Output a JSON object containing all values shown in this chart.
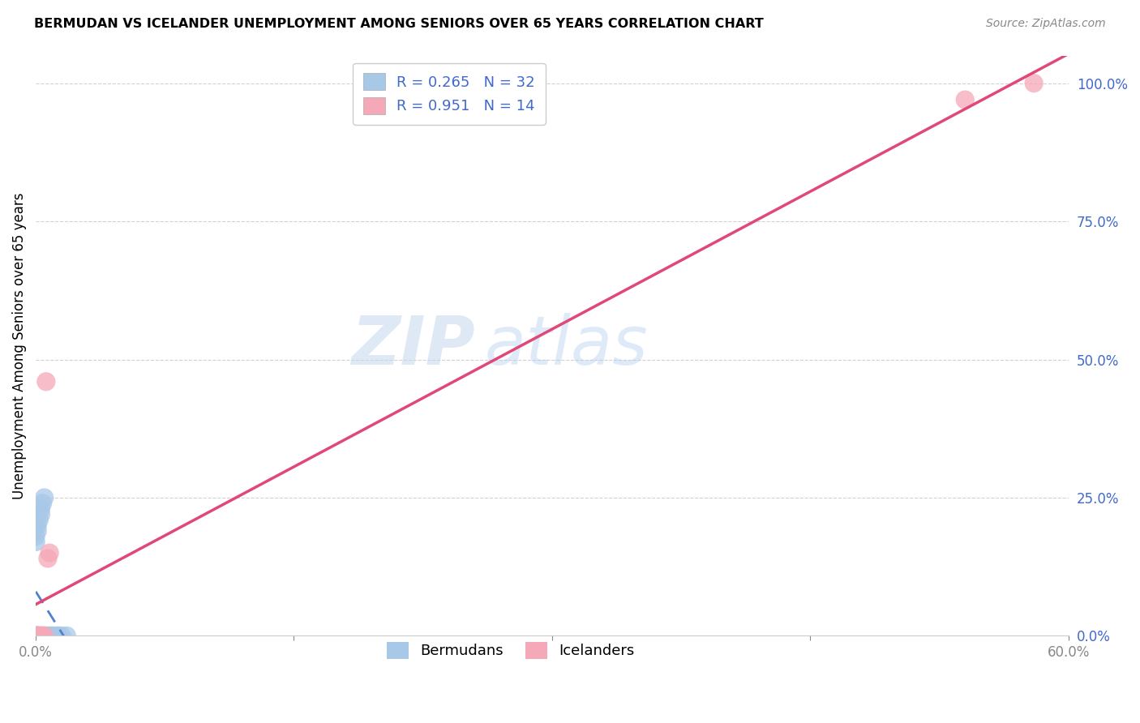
{
  "title": "BERMUDAN VS ICELANDER UNEMPLOYMENT AMONG SENIORS OVER 65 YEARS CORRELATION CHART",
  "source": "Source: ZipAtlas.com",
  "ylabel": "Unemployment Among Seniors over 65 years",
  "bermudans_color": "#a8c8e8",
  "icelanders_color": "#f5a8b8",
  "bermudans_line_color": "#5080d0",
  "icelanders_line_color": "#e04878",
  "watermark_zip": "ZIP",
  "watermark_atlas": "atlas",
  "bermudans_x": [
    0.0,
    0.0,
    0.0,
    0.0,
    0.0,
    0.0,
    0.0,
    0.0,
    0.001,
    0.001,
    0.001,
    0.001,
    0.001,
    0.002,
    0.002,
    0.002,
    0.003,
    0.003,
    0.003,
    0.004,
    0.004,
    0.005,
    0.005,
    0.006,
    0.007,
    0.008,
    0.009,
    0.01,
    0.012,
    0.013,
    0.015,
    0.018
  ],
  "bermudans_y": [
    0.0,
    0.0,
    0.0,
    0.0,
    0.0,
    0.0,
    0.17,
    0.18,
    0.0,
    0.0,
    0.0,
    0.19,
    0.2,
    0.0,
    0.0,
    0.21,
    0.0,
    0.22,
    0.23,
    0.0,
    0.24,
    0.0,
    0.25,
    0.0,
    0.0,
    0.0,
    0.0,
    0.0,
    0.0,
    0.0,
    0.0,
    0.0
  ],
  "icelanders_x": [
    0.0,
    0.0,
    0.001,
    0.001,
    0.002,
    0.002,
    0.003,
    0.004,
    0.005,
    0.006,
    0.007,
    0.008,
    0.54,
    0.58
  ],
  "icelanders_y": [
    0.0,
    0.0,
    0.0,
    0.0,
    0.0,
    0.0,
    0.0,
    0.0,
    0.0,
    0.46,
    0.14,
    0.15,
    0.97,
    1.0
  ],
  "xlim": [
    0.0,
    0.6
  ],
  "ylim": [
    0.0,
    1.05
  ],
  "x_ticks": [
    0.0,
    0.15,
    0.3,
    0.45,
    0.6
  ],
  "x_tick_labels": [
    "0.0%",
    "",
    "",
    "",
    "60.0%"
  ],
  "y_ticks": [
    0.0,
    0.25,
    0.5,
    0.75,
    1.0
  ],
  "y_tick_labels": [
    "0.0%",
    "25.0%",
    "50.0%",
    "75.0%",
    "100.0%"
  ],
  "tick_color": "#4169cc",
  "legend_R_berm": "R = 0.265",
  "legend_N_berm": "N = 32",
  "legend_R_icel": "R = 0.951",
  "legend_N_icel": "N = 14"
}
